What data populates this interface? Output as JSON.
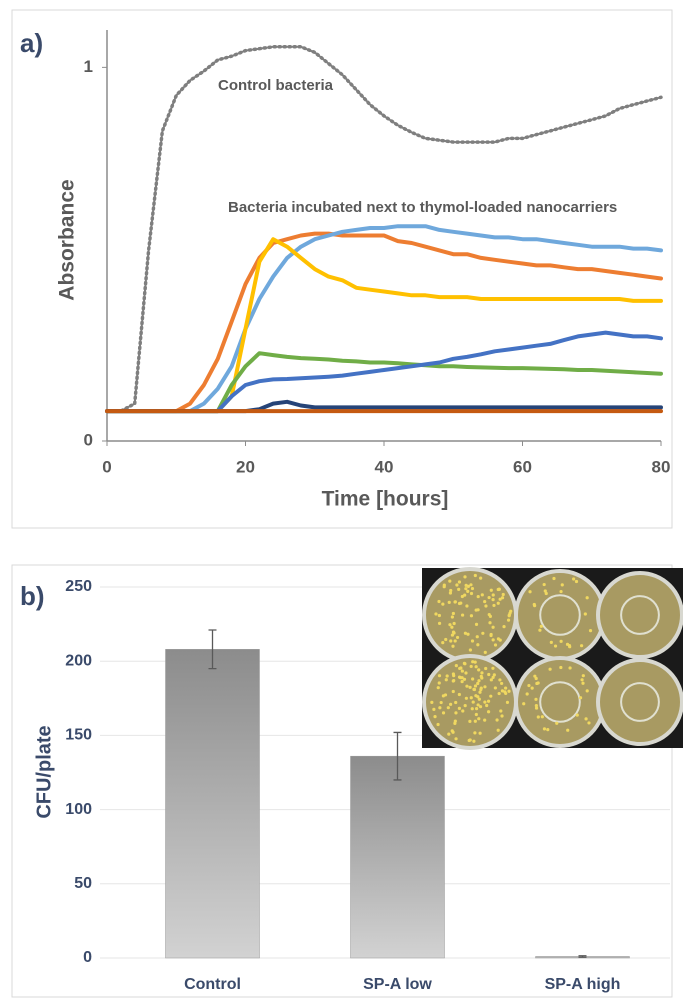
{
  "chart_data": [
    {
      "type": "line",
      "panel_label": "a)",
      "x_label": "Time [hours]",
      "y_label": "Absorbance",
      "annotations": [
        "Control bacteria",
        "Bacteria incubated next to thymol-loaded nanocarriers"
      ],
      "xlim": [
        0,
        80
      ],
      "xticks": [
        0,
        20,
        40,
        60,
        80
      ],
      "ylim": [
        0,
        1.1
      ],
      "yticks": [
        0,
        1
      ],
      "grid": false,
      "x": [
        0,
        2,
        4,
        6,
        8,
        10,
        12,
        14,
        16,
        18,
        20,
        22,
        24,
        26,
        28,
        30,
        32,
        34,
        36,
        38,
        40,
        42,
        44,
        46,
        48,
        50,
        52,
        54,
        56,
        58,
        60,
        62,
        64,
        66,
        68,
        70,
        72,
        74,
        76,
        78,
        80
      ],
      "series": [
        {
          "color": "#7f7f7f",
          "values": [
            0.08,
            0.08,
            0.1,
            0.51,
            0.83,
            0.925,
            0.965,
            0.99,
            1.02,
            1.03,
            1.045,
            1.05,
            1.055,
            1.055,
            1.055,
            1.04,
            1.01,
            0.98,
            0.94,
            0.9,
            0.87,
            0.845,
            0.826,
            0.81,
            0.805,
            0.8,
            0.8,
            0.8,
            0.8,
            0.81,
            0.81,
            0.82,
            0.83,
            0.84,
            0.85,
            0.86,
            0.87,
            0.89,
            0.9,
            0.91,
            0.92
          ]
        },
        {
          "color": "#ed7d31",
          "values": [
            0.08,
            0.08,
            0.08,
            0.08,
            0.08,
            0.08,
            0.1,
            0.15,
            0.22,
            0.32,
            0.42,
            0.49,
            0.53,
            0.54,
            0.55,
            0.555,
            0.555,
            0.55,
            0.55,
            0.55,
            0.55,
            0.535,
            0.53,
            0.52,
            0.51,
            0.5,
            0.5,
            0.49,
            0.485,
            0.48,
            0.475,
            0.47,
            0.47,
            0.465,
            0.46,
            0.46,
            0.455,
            0.45,
            0.445,
            0.44,
            0.435
          ]
        },
        {
          "color": "#6fa8dc",
          "values": [
            0.08,
            0.08,
            0.08,
            0.08,
            0.08,
            0.08,
            0.08,
            0.1,
            0.14,
            0.2,
            0.3,
            0.38,
            0.44,
            0.49,
            0.52,
            0.54,
            0.55,
            0.56,
            0.565,
            0.57,
            0.57,
            0.575,
            0.575,
            0.575,
            0.565,
            0.56,
            0.555,
            0.55,
            0.545,
            0.545,
            0.54,
            0.54,
            0.535,
            0.53,
            0.525,
            0.52,
            0.52,
            0.52,
            0.515,
            0.515,
            0.51
          ]
        },
        {
          "color": "#ffc000",
          "values": [
            0.08,
            0.08,
            0.08,
            0.08,
            0.08,
            0.08,
            0.08,
            0.08,
            0.08,
            0.12,
            0.3,
            0.48,
            0.54,
            0.52,
            0.49,
            0.46,
            0.44,
            0.43,
            0.41,
            0.405,
            0.4,
            0.395,
            0.39,
            0.39,
            0.385,
            0.385,
            0.385,
            0.38,
            0.38,
            0.38,
            0.38,
            0.38,
            0.38,
            0.38,
            0.38,
            0.38,
            0.38,
            0.38,
            0.375,
            0.375,
            0.375
          ]
        },
        {
          "color": "#70ad47",
          "values": [
            0.08,
            0.08,
            0.08,
            0.08,
            0.08,
            0.08,
            0.08,
            0.08,
            0.08,
            0.15,
            0.2,
            0.235,
            0.23,
            0.225,
            0.222,
            0.22,
            0.218,
            0.215,
            0.213,
            0.21,
            0.21,
            0.208,
            0.205,
            0.203,
            0.2,
            0.2,
            0.198,
            0.197,
            0.196,
            0.195,
            0.195,
            0.194,
            0.193,
            0.192,
            0.19,
            0.19,
            0.188,
            0.186,
            0.184,
            0.182,
            0.18
          ]
        },
        {
          "color": "#4472c4",
          "values": [
            0.08,
            0.08,
            0.08,
            0.08,
            0.08,
            0.08,
            0.08,
            0.08,
            0.08,
            0.12,
            0.15,
            0.16,
            0.165,
            0.166,
            0.168,
            0.17,
            0.172,
            0.175,
            0.18,
            0.185,
            0.19,
            0.195,
            0.2,
            0.205,
            0.21,
            0.22,
            0.225,
            0.232,
            0.24,
            0.245,
            0.25,
            0.255,
            0.26,
            0.27,
            0.28,
            0.285,
            0.29,
            0.285,
            0.28,
            0.28,
            0.275
          ]
        },
        {
          "color": "#264478",
          "values": [
            0.08,
            0.08,
            0.08,
            0.08,
            0.08,
            0.08,
            0.08,
            0.08,
            0.08,
            0.08,
            0.08,
            0.085,
            0.1,
            0.105,
            0.095,
            0.09,
            0.09,
            0.09,
            0.09,
            0.09,
            0.09,
            0.09,
            0.09,
            0.09,
            0.09,
            0.09,
            0.09,
            0.09,
            0.09,
            0.09,
            0.09,
            0.09,
            0.09,
            0.09,
            0.09,
            0.09,
            0.09,
            0.09,
            0.09,
            0.09,
            0.09
          ]
        },
        {
          "color": "#c55a11",
          "values": [
            0.08,
            0.08,
            0.08,
            0.08,
            0.08,
            0.08,
            0.08,
            0.08,
            0.08,
            0.08,
            0.08,
            0.08,
            0.08,
            0.08,
            0.08,
            0.08,
            0.08,
            0.08,
            0.08,
            0.08,
            0.08,
            0.08,
            0.08,
            0.08,
            0.08,
            0.08,
            0.08,
            0.08,
            0.08,
            0.08,
            0.08,
            0.08,
            0.08,
            0.08,
            0.08,
            0.08,
            0.08,
            0.08,
            0.08,
            0.08,
            0.08
          ]
        }
      ]
    },
    {
      "type": "bar",
      "panel_label": "b)",
      "y_label": "CFU/plate",
      "categories": [
        "Control",
        "SP-A low",
        "SP-A high"
      ],
      "values": [
        208,
        136,
        1
      ],
      "errors": [
        13,
        16,
        0.5
      ],
      "color": "#9a9a9a",
      "ylim": [
        0,
        250
      ],
      "yticks": [
        0,
        50,
        100,
        150,
        200,
        250
      ],
      "grid": true
    }
  ]
}
